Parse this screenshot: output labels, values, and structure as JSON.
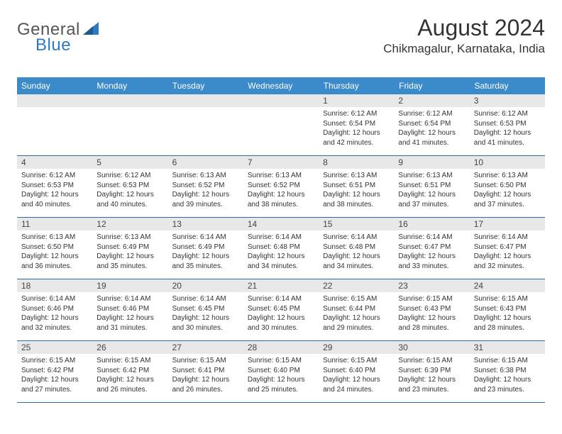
{
  "logo": {
    "text1": "General",
    "text2": "Blue"
  },
  "title": "August 2024",
  "location": "Chikmagalur, Karnataka, India",
  "colors": {
    "header_bg": "#3b8aca",
    "header_text": "#ffffff",
    "band_bg": "#e8e8e8",
    "divider": "#2d6aa3",
    "logo_gray": "#555555",
    "logo_blue": "#2f79bf"
  },
  "day_names": [
    "Sunday",
    "Monday",
    "Tuesday",
    "Wednesday",
    "Thursday",
    "Friday",
    "Saturday"
  ],
  "weeks": [
    [
      null,
      null,
      null,
      null,
      {
        "n": "1",
        "sr": "Sunrise: 6:12 AM",
        "ss": "Sunset: 6:54 PM",
        "d1": "Daylight: 12 hours",
        "d2": "and 42 minutes."
      },
      {
        "n": "2",
        "sr": "Sunrise: 6:12 AM",
        "ss": "Sunset: 6:54 PM",
        "d1": "Daylight: 12 hours",
        "d2": "and 41 minutes."
      },
      {
        "n": "3",
        "sr": "Sunrise: 6:12 AM",
        "ss": "Sunset: 6:53 PM",
        "d1": "Daylight: 12 hours",
        "d2": "and 41 minutes."
      }
    ],
    [
      {
        "n": "4",
        "sr": "Sunrise: 6:12 AM",
        "ss": "Sunset: 6:53 PM",
        "d1": "Daylight: 12 hours",
        "d2": "and 40 minutes."
      },
      {
        "n": "5",
        "sr": "Sunrise: 6:12 AM",
        "ss": "Sunset: 6:53 PM",
        "d1": "Daylight: 12 hours",
        "d2": "and 40 minutes."
      },
      {
        "n": "6",
        "sr": "Sunrise: 6:13 AM",
        "ss": "Sunset: 6:52 PM",
        "d1": "Daylight: 12 hours",
        "d2": "and 39 minutes."
      },
      {
        "n": "7",
        "sr": "Sunrise: 6:13 AM",
        "ss": "Sunset: 6:52 PM",
        "d1": "Daylight: 12 hours",
        "d2": "and 38 minutes."
      },
      {
        "n": "8",
        "sr": "Sunrise: 6:13 AM",
        "ss": "Sunset: 6:51 PM",
        "d1": "Daylight: 12 hours",
        "d2": "and 38 minutes."
      },
      {
        "n": "9",
        "sr": "Sunrise: 6:13 AM",
        "ss": "Sunset: 6:51 PM",
        "d1": "Daylight: 12 hours",
        "d2": "and 37 minutes."
      },
      {
        "n": "10",
        "sr": "Sunrise: 6:13 AM",
        "ss": "Sunset: 6:50 PM",
        "d1": "Daylight: 12 hours",
        "d2": "and 37 minutes."
      }
    ],
    [
      {
        "n": "11",
        "sr": "Sunrise: 6:13 AM",
        "ss": "Sunset: 6:50 PM",
        "d1": "Daylight: 12 hours",
        "d2": "and 36 minutes."
      },
      {
        "n": "12",
        "sr": "Sunrise: 6:13 AM",
        "ss": "Sunset: 6:49 PM",
        "d1": "Daylight: 12 hours",
        "d2": "and 35 minutes."
      },
      {
        "n": "13",
        "sr": "Sunrise: 6:14 AM",
        "ss": "Sunset: 6:49 PM",
        "d1": "Daylight: 12 hours",
        "d2": "and 35 minutes."
      },
      {
        "n": "14",
        "sr": "Sunrise: 6:14 AM",
        "ss": "Sunset: 6:48 PM",
        "d1": "Daylight: 12 hours",
        "d2": "and 34 minutes."
      },
      {
        "n": "15",
        "sr": "Sunrise: 6:14 AM",
        "ss": "Sunset: 6:48 PM",
        "d1": "Daylight: 12 hours",
        "d2": "and 34 minutes."
      },
      {
        "n": "16",
        "sr": "Sunrise: 6:14 AM",
        "ss": "Sunset: 6:47 PM",
        "d1": "Daylight: 12 hours",
        "d2": "and 33 minutes."
      },
      {
        "n": "17",
        "sr": "Sunrise: 6:14 AM",
        "ss": "Sunset: 6:47 PM",
        "d1": "Daylight: 12 hours",
        "d2": "and 32 minutes."
      }
    ],
    [
      {
        "n": "18",
        "sr": "Sunrise: 6:14 AM",
        "ss": "Sunset: 6:46 PM",
        "d1": "Daylight: 12 hours",
        "d2": "and 32 minutes."
      },
      {
        "n": "19",
        "sr": "Sunrise: 6:14 AM",
        "ss": "Sunset: 6:46 PM",
        "d1": "Daylight: 12 hours",
        "d2": "and 31 minutes."
      },
      {
        "n": "20",
        "sr": "Sunrise: 6:14 AM",
        "ss": "Sunset: 6:45 PM",
        "d1": "Daylight: 12 hours",
        "d2": "and 30 minutes."
      },
      {
        "n": "21",
        "sr": "Sunrise: 6:14 AM",
        "ss": "Sunset: 6:45 PM",
        "d1": "Daylight: 12 hours",
        "d2": "and 30 minutes."
      },
      {
        "n": "22",
        "sr": "Sunrise: 6:15 AM",
        "ss": "Sunset: 6:44 PM",
        "d1": "Daylight: 12 hours",
        "d2": "and 29 minutes."
      },
      {
        "n": "23",
        "sr": "Sunrise: 6:15 AM",
        "ss": "Sunset: 6:43 PM",
        "d1": "Daylight: 12 hours",
        "d2": "and 28 minutes."
      },
      {
        "n": "24",
        "sr": "Sunrise: 6:15 AM",
        "ss": "Sunset: 6:43 PM",
        "d1": "Daylight: 12 hours",
        "d2": "and 28 minutes."
      }
    ],
    [
      {
        "n": "25",
        "sr": "Sunrise: 6:15 AM",
        "ss": "Sunset: 6:42 PM",
        "d1": "Daylight: 12 hours",
        "d2": "and 27 minutes."
      },
      {
        "n": "26",
        "sr": "Sunrise: 6:15 AM",
        "ss": "Sunset: 6:42 PM",
        "d1": "Daylight: 12 hours",
        "d2": "and 26 minutes."
      },
      {
        "n": "27",
        "sr": "Sunrise: 6:15 AM",
        "ss": "Sunset: 6:41 PM",
        "d1": "Daylight: 12 hours",
        "d2": "and 26 minutes."
      },
      {
        "n": "28",
        "sr": "Sunrise: 6:15 AM",
        "ss": "Sunset: 6:40 PM",
        "d1": "Daylight: 12 hours",
        "d2": "and 25 minutes."
      },
      {
        "n": "29",
        "sr": "Sunrise: 6:15 AM",
        "ss": "Sunset: 6:40 PM",
        "d1": "Daylight: 12 hours",
        "d2": "and 24 minutes."
      },
      {
        "n": "30",
        "sr": "Sunrise: 6:15 AM",
        "ss": "Sunset: 6:39 PM",
        "d1": "Daylight: 12 hours",
        "d2": "and 23 minutes."
      },
      {
        "n": "31",
        "sr": "Sunrise: 6:15 AM",
        "ss": "Sunset: 6:38 PM",
        "d1": "Daylight: 12 hours",
        "d2": "and 23 minutes."
      }
    ]
  ]
}
